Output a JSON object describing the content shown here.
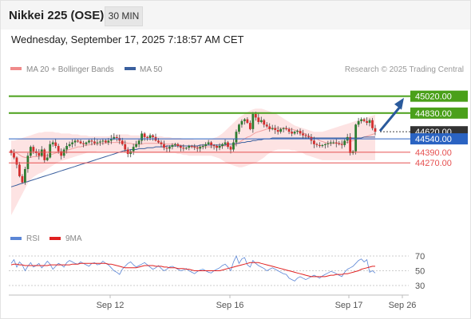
{
  "header": {
    "title": "Nikkei 225 (OSE)",
    "timeframe": "30 MIN"
  },
  "datetime": "Wednesday, September 17, 2025 7:18:57 AM CET",
  "legend": {
    "ma20_label": "MA 20 + Bollinger Bands",
    "ma50_label": "MA 50",
    "credit": "Research © 2025 Trading Central",
    "ma20_color": "#f08a8a",
    "ma50_color": "#3a5f9e"
  },
  "rsi_legend": {
    "rsi_label": "RSI",
    "ma_label": "9MA",
    "rsi_color": "#5b86d6",
    "ma_color": "#e02020"
  },
  "colors": {
    "target": "#4aa01a",
    "pivot": "#2a63c2",
    "support": "#e65050",
    "last": "#333333",
    "arrow": "#2a5a9c",
    "band": "#fde3e3",
    "candle_up": "#2e7d32",
    "candle_down": "#d32f2f"
  },
  "chart_data": [
    {
      "type": "candlestick",
      "price_range": [
        43500,
        45250
      ],
      "x_labels": [
        "Sep 12",
        "Sep 16",
        "Sep 17",
        "Sep 26"
      ],
      "levels": [
        {
          "label": "45020.00",
          "value": 45020,
          "kind": "target"
        },
        {
          "label": "44830.00",
          "value": 44830,
          "kind": "target"
        },
        {
          "label": "44620.00",
          "value": 44620,
          "kind": "last"
        },
        {
          "label": "44540.00",
          "value": 44540,
          "kind": "pivot"
        },
        {
          "label": "44390.00",
          "value": 44390,
          "kind": "support"
        },
        {
          "label": "44270.00",
          "value": 44270,
          "kind": "support"
        }
      ],
      "close": [
        44380,
        44330,
        44250,
        44120,
        44050,
        44200,
        44350,
        44450,
        44400,
        44380,
        44350,
        44420,
        44300,
        44330,
        44480,
        44500,
        44460,
        44400,
        44350,
        44420,
        44460,
        44480,
        44500,
        44520,
        44510,
        44490,
        44480,
        44500,
        44520,
        44510,
        44490,
        44500,
        44510,
        44520,
        44500,
        44520,
        44540,
        44560,
        44550,
        44520,
        44480,
        44420,
        44370,
        44400,
        44450,
        44480,
        44520,
        44600,
        44560,
        44550,
        44580,
        44560,
        44520,
        44500,
        44480,
        44440,
        44430,
        44450,
        44470,
        44480,
        44460,
        44440,
        44430,
        44440,
        44460,
        44450,
        44440,
        44430,
        44450,
        44460,
        44480,
        44500,
        44470,
        44460,
        44440,
        44460,
        44480,
        44500,
        44450,
        44420,
        44500,
        44620,
        44700,
        44740,
        44760,
        44720,
        44650,
        44820,
        44780,
        44730,
        44750,
        44700,
        44680,
        44650,
        44660,
        44640,
        44620,
        44650,
        44660,
        44650,
        44620,
        44600,
        44620,
        44630,
        44600,
        44580,
        44570,
        44560,
        44520,
        44480,
        44470,
        44460,
        44470,
        44480,
        44490,
        44500,
        44500,
        44490,
        44480,
        44470,
        44520,
        44560,
        44380,
        44400,
        44700,
        44740,
        44760,
        44740,
        44720,
        44750,
        44660,
        44620
      ],
      "ma20": [
        44400,
        44390,
        44380,
        44360,
        44340,
        44330,
        44330,
        44330,
        44340,
        44340,
        44340,
        44350,
        44350,
        44350,
        44360,
        44370,
        44380,
        44390,
        44390,
        44400,
        44410,
        44420,
        44430,
        44440,
        44450,
        44450,
        44460,
        44470,
        44470,
        44480,
        44480,
        44480,
        44490,
        44490,
        44490,
        44500,
        44500,
        44500,
        44500,
        44500,
        44500,
        44500,
        44490,
        44490,
        44480,
        44480,
        44480,
        44480,
        44490,
        44490,
        44490,
        44490,
        44490,
        44490,
        44490,
        44490,
        44480,
        44480,
        44480,
        44480,
        44470,
        44470,
        44460,
        44460,
        44460,
        44460,
        44450,
        44450,
        44450,
        44450,
        44450,
        44450,
        44450,
        44450,
        44450,
        44450,
        44460,
        44460,
        44460,
        44460,
        44470,
        44480,
        44500,
        44520,
        44540,
        44560,
        44570,
        44590,
        44610,
        44620,
        44630,
        44640,
        44650,
        44660,
        44660,
        44660,
        44660,
        44660,
        44660,
        44660,
        44650,
        44650,
        44640,
        44630,
        44620,
        44610,
        44590,
        44580,
        44560,
        44550,
        44540,
        44520,
        44510,
        44500,
        44490,
        44490,
        44490,
        44490,
        44490,
        44490,
        44500,
        44500,
        44510,
        44520,
        44530,
        44540,
        44550,
        44560,
        44570,
        44580,
        44590,
        44600
      ],
      "bb_upper": [
        44520,
        44520,
        44530,
        44540,
        44550,
        44560,
        44570,
        44580,
        44590,
        44600,
        44610,
        44610,
        44620,
        44620,
        44620,
        44620,
        44610,
        44610,
        44600,
        44600,
        44600,
        44600,
        44590,
        44590,
        44590,
        44580,
        44580,
        44580,
        44570,
        44570,
        44570,
        44570,
        44570,
        44570,
        44570,
        44570,
        44580,
        44580,
        44590,
        44590,
        44590,
        44590,
        44590,
        44580,
        44580,
        44580,
        44580,
        44580,
        44580,
        44580,
        44580,
        44580,
        44570,
        44570,
        44570,
        44560,
        44560,
        44560,
        44550,
        44550,
        44550,
        44550,
        44540,
        44540,
        44540,
        44540,
        44530,
        44530,
        44530,
        44530,
        44530,
        44530,
        44540,
        44550,
        44560,
        44580,
        44600,
        44630,
        44660,
        44690,
        44720,
        44750,
        44780,
        44800,
        44820,
        44840,
        44860,
        44870,
        44880,
        44880,
        44880,
        44870,
        44860,
        44850,
        44840,
        44830,
        44810,
        44790,
        44770,
        44750,
        44730,
        44710,
        44690,
        44680,
        44670,
        44660,
        44650,
        44640,
        44630,
        44620,
        44620,
        44620,
        44620,
        44630,
        44640,
        44650,
        44660,
        44670,
        44680,
        44690,
        44700,
        44710,
        44720,
        44730,
        44740,
        44750,
        44760,
        44770,
        44780,
        44790,
        44800,
        44810
      ],
      "bb_lower": [
        43680,
        43740,
        43800,
        43860,
        43920,
        43980,
        44040,
        44080,
        44110,
        44130,
        44150,
        44160,
        44180,
        44200,
        44220,
        44240,
        44260,
        44280,
        44290,
        44300,
        44310,
        44320,
        44330,
        44340,
        44350,
        44360,
        44370,
        44380,
        44390,
        44390,
        44390,
        44400,
        44400,
        44400,
        44400,
        44400,
        44400,
        44400,
        44400,
        44400,
        44400,
        44390,
        44390,
        44390,
        44380,
        44380,
        44380,
        44380,
        44380,
        44380,
        44380,
        44380,
        44380,
        44380,
        44380,
        44380,
        44380,
        44380,
        44380,
        44380,
        44370,
        44370,
        44360,
        44360,
        44350,
        44350,
        44350,
        44350,
        44350,
        44350,
        44350,
        44350,
        44350,
        44340,
        44330,
        44320,
        44300,
        44280,
        44260,
        44250,
        44240,
        44230,
        44220,
        44220,
        44230,
        44240,
        44250,
        44260,
        44270,
        44290,
        44310,
        44330,
        44360,
        44380,
        44400,
        44410,
        44420,
        44420,
        44420,
        44420,
        44420,
        44410,
        44410,
        44400,
        44390,
        44380,
        44360,
        44350,
        44340,
        44330,
        44320,
        44310,
        44300,
        44300,
        44300,
        44300,
        44300,
        44300,
        44300,
        44300,
        44300,
        44300,
        44300,
        44300,
        44300,
        44300,
        44300,
        44300,
        44300,
        44300,
        44300,
        44300
      ],
      "ma50": [
        44000,
        44010,
        44020,
        44030,
        44040,
        44050,
        44060,
        44070,
        44080,
        44090,
        44100,
        44110,
        44120,
        44130,
        44140,
        44150,
        44160,
        44170,
        44180,
        44190,
        44200,
        44210,
        44220,
        44230,
        44240,
        44250,
        44260,
        44270,
        44280,
        44290,
        44300,
        44310,
        44320,
        44330,
        44340,
        44350,
        44360,
        44370,
        44380,
        44390,
        44400,
        44410,
        44410,
        44420,
        44420,
        44420,
        44430,
        44430,
        44430,
        44440,
        44440,
        44440,
        44450,
        44450,
        44450,
        44450,
        44460,
        44460,
        44460,
        44460,
        44460,
        44460,
        44460,
        44460,
        44460,
        44460,
        44460,
        44460,
        44470,
        44470,
        44470,
        44470,
        44470,
        44470,
        44470,
        44470,
        44470,
        44470,
        44480,
        44480,
        44480,
        44490,
        44490,
        44500,
        44500,
        44510,
        44510,
        44520,
        44520,
        44530,
        44530,
        44540,
        44540,
        44540,
        44550,
        44550,
        44550,
        44550,
        44550,
        44550,
        44550,
        44550,
        44550,
        44550,
        44550,
        44550,
        44550,
        44550,
        44550,
        44550,
        44550,
        44550,
        44550,
        44550,
        44550,
        44550,
        44550,
        44550,
        44550,
        44550,
        44550,
        44550,
        44550,
        44550,
        44550,
        44550,
        44550,
        44560,
        44560,
        44560,
        44560,
        44560
      ]
    },
    {
      "type": "line",
      "ylim": [
        20,
        80
      ],
      "y_ticks": [
        70,
        50,
        30
      ],
      "series": [
        {
          "name": "RSI",
          "values": [
            60,
            65,
            55,
            62,
            58,
            50,
            56,
            61,
            55,
            57,
            60,
            54,
            58,
            63,
            59,
            52,
            56,
            60,
            58,
            55,
            61,
            64,
            62,
            60,
            59,
            62,
            60,
            58,
            56,
            60,
            61,
            58,
            59,
            63,
            60,
            58,
            54,
            50,
            48,
            45,
            52,
            56,
            60,
            62,
            58,
            55,
            57,
            59,
            61,
            58,
            55,
            52,
            54,
            57,
            53,
            50,
            52,
            55,
            56,
            54,
            52,
            50,
            51,
            53,
            50,
            48,
            46,
            49,
            51,
            52,
            50,
            48,
            47,
            50,
            52,
            54,
            57,
            59,
            55,
            50,
            62,
            70,
            60,
            66,
            68,
            58,
            55,
            64,
            60,
            57,
            55,
            53,
            50,
            52,
            54,
            52,
            50,
            48,
            46,
            45,
            40,
            38,
            36,
            40,
            42,
            40,
            38,
            40,
            42,
            44,
            42,
            40,
            43,
            45,
            47,
            49,
            48,
            46,
            44,
            42,
            48,
            52,
            54,
            56,
            60,
            64,
            66,
            62,
            65,
            48,
            50,
            47
          ]
        },
        {
          "name": "9MA",
          "values": [
            58,
            59,
            59,
            58,
            58,
            57,
            57,
            57,
            57,
            57,
            57,
            57,
            57,
            57,
            58,
            58,
            58,
            58,
            58,
            58,
            58,
            58,
            59,
            59,
            59,
            60,
            60,
            60,
            60,
            60,
            60,
            60,
            60,
            60,
            60,
            59,
            59,
            58,
            57,
            56,
            55,
            54,
            54,
            54,
            54,
            54,
            55,
            56,
            57,
            57,
            57,
            57,
            56,
            56,
            56,
            55,
            55,
            54,
            54,
            54,
            53,
            53,
            53,
            52,
            52,
            51,
            50,
            50,
            50,
            50,
            50,
            50,
            50,
            50,
            50,
            50,
            51,
            52,
            53,
            54,
            55,
            56,
            57,
            58,
            59,
            60,
            61,
            61,
            61,
            61,
            60,
            59,
            58,
            57,
            56,
            55,
            54,
            53,
            52,
            51,
            50,
            49,
            48,
            47,
            46,
            45,
            44,
            43,
            42,
            42,
            42,
            42,
            42,
            42,
            43,
            44,
            44,
            45,
            45,
            45,
            46,
            46,
            47,
            48,
            49,
            50,
            52,
            53,
            54,
            55,
            56,
            56
          ]
        }
      ]
    }
  ]
}
